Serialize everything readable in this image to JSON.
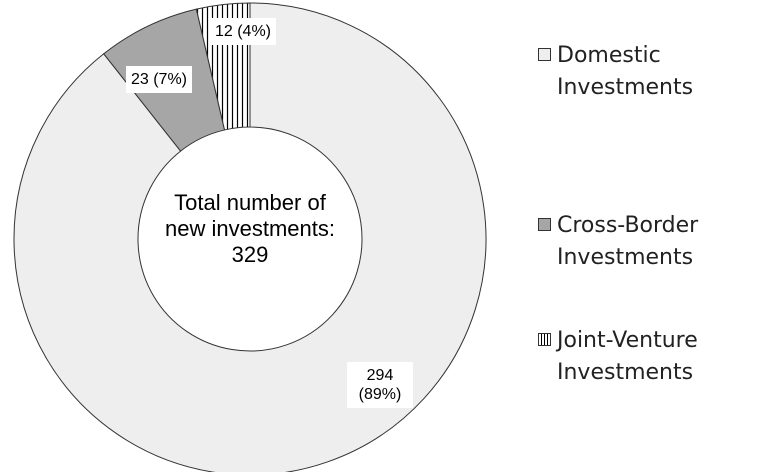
{
  "chart_data": {
    "type": "donut",
    "categories": [
      "Domestic Investments",
      "Cross-Border Investments",
      "Joint-Venture Investments"
    ],
    "values": [
      294,
      23,
      12
    ],
    "value_labels": [
      "294 (89%)",
      "23 (7%)",
      "12 (4%)"
    ],
    "colors": [
      "#eeeeee",
      "#a6a6a6",
      "#ffffff"
    ],
    "hatches": [
      null,
      null,
      "vertical"
    ],
    "center_label": "Total number of new investments:",
    "total": 329,
    "legend": "right"
  }
}
